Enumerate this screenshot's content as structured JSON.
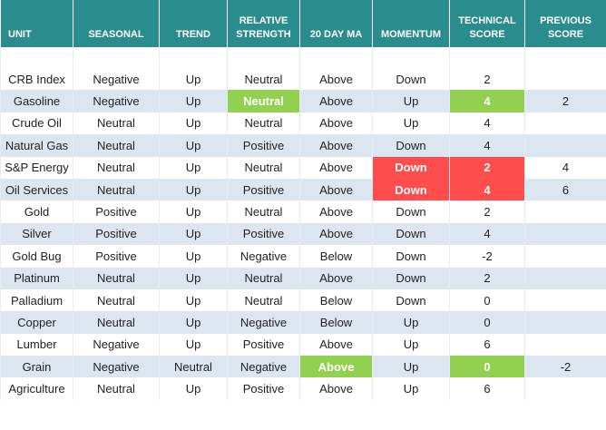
{
  "table": {
    "columns": [
      "UNIT",
      "SEASONAL",
      "TREND",
      "RELATIVE STRENGTH",
      "20 DAY MA",
      "MOMENTUM",
      "TECHNICAL SCORE",
      "PREVIOUS SCORE"
    ],
    "rows": [
      [
        "CRB Index",
        "Negative",
        "Up",
        "Neutral",
        "Above",
        "Down",
        "2",
        null
      ],
      [
        "Gasoline",
        "Negative",
        "Up",
        "Neutral",
        "Above",
        "Up",
        "4",
        "2"
      ],
      [
        "Crude Oil",
        "Neutral",
        "Up",
        "Neutral",
        "Above",
        "Up",
        "4",
        null
      ],
      [
        "Natural Gas",
        "Neutral",
        "Up",
        "Positive",
        "Above",
        "Down",
        "4",
        null
      ],
      [
        "S&P Energy",
        "Neutral",
        "Up",
        "Neutral",
        "Above",
        "Down",
        "2",
        "4"
      ],
      [
        "Oil Services",
        "Neutral",
        "Up",
        "Positive",
        "Above",
        "Down",
        "4",
        "6"
      ],
      [
        "Gold",
        "Positive",
        "Up",
        "Neutral",
        "Above",
        "Down",
        "2",
        null
      ],
      [
        "Silver",
        "Positive",
        "Up",
        "Positive",
        "Above",
        "Down",
        "4",
        null
      ],
      [
        "Gold Bug",
        "Positive",
        "Up",
        "Negative",
        "Below",
        "Down",
        "-2",
        null
      ],
      [
        "Platinum",
        "Neutral",
        "Up",
        "Neutral",
        "Above",
        "Down",
        "2",
        null
      ],
      [
        "Palladium",
        "Neutral",
        "Up",
        "Neutral",
        "Below",
        "Down",
        "0",
        null
      ],
      [
        "Copper",
        "Neutral",
        "Up",
        "Negative",
        "Below",
        "Up",
        "0",
        null
      ],
      [
        "Lumber",
        "Negative",
        "Up",
        "Positive",
        "Above",
        "Up",
        "6",
        null
      ],
      [
        "Grain",
        "Negative",
        "Neutral",
        "Negative",
        "Above",
        "Up",
        "0",
        "-2"
      ],
      [
        "Agriculture",
        "Neutral",
        "Up",
        "Positive",
        "Above",
        "Up",
        "6",
        null
      ]
    ]
  }
}
